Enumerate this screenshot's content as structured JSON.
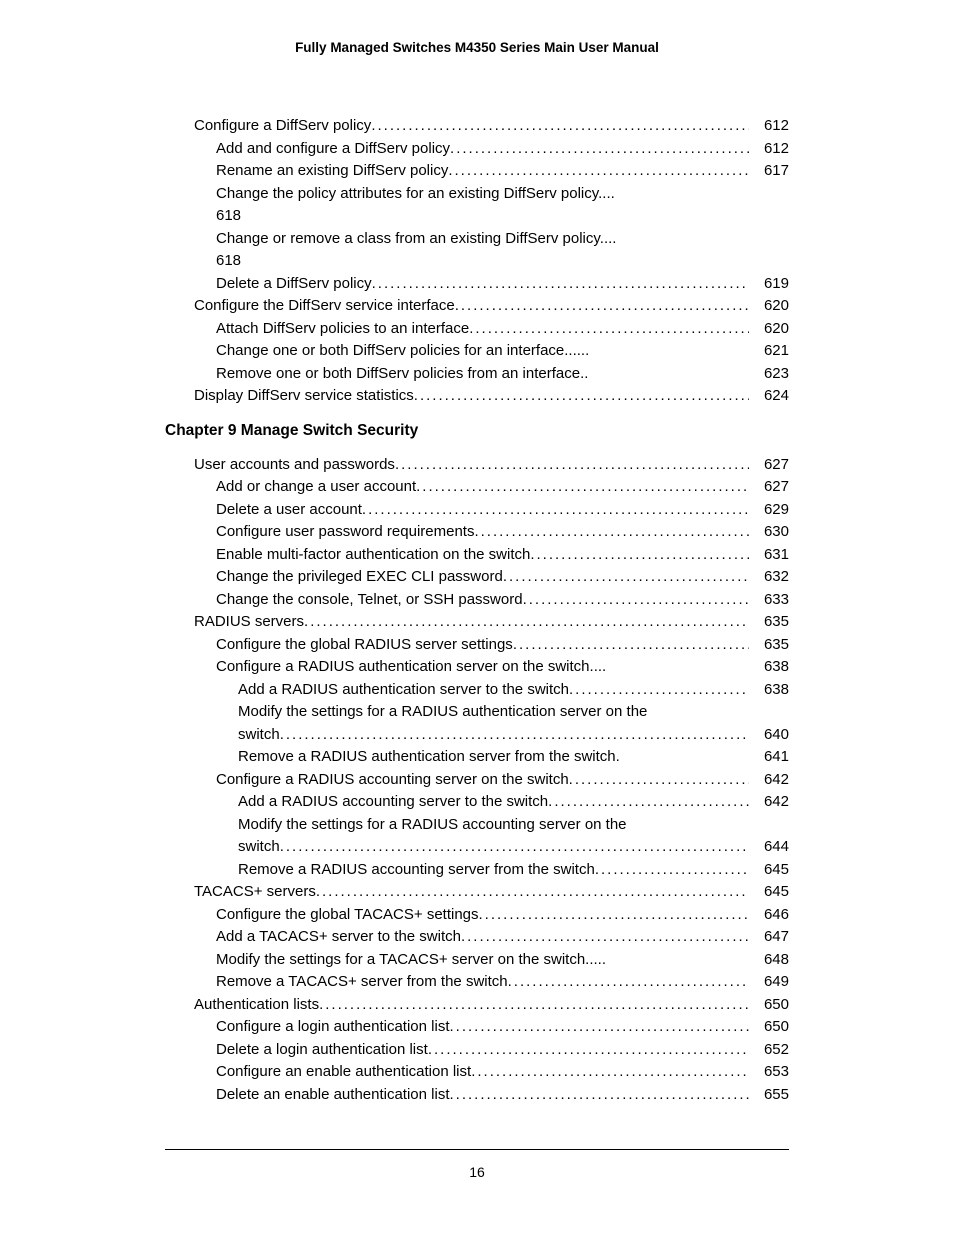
{
  "header": "Fully Managed Switches M4350 Series Main User Manual",
  "chapterHeading": "Chapter 9 Manage Switch Security",
  "footerPage": "16",
  "section1": [
    {
      "level": 0,
      "text": "Configure a DiffServ policy",
      "page": "612"
    },
    {
      "level": 1,
      "text": "Add and configure a DiffServ policy",
      "page": "612"
    },
    {
      "level": 1,
      "text": "Rename an existing DiffServ policy",
      "page": "617"
    },
    {
      "level": 1,
      "text": "Change the policy attributes for an existing DiffServ policy",
      "dots": "....",
      "wrap": "618"
    },
    {
      "level": 1,
      "text": "Change or remove a class from an existing DiffServ policy",
      "dots": "....",
      "wrap": "618"
    },
    {
      "level": 1,
      "text": "Delete a DiffServ policy",
      "page": "619"
    },
    {
      "level": 0,
      "text": "Configure the DiffServ service interface",
      "page": "620"
    },
    {
      "level": 1,
      "text": "Attach DiffServ policies to an interface",
      "page": "620"
    },
    {
      "level": 1,
      "text": "Change one or both DiffServ policies for an interface",
      "dots": "......",
      "page": "621"
    },
    {
      "level": 1,
      "text": "Remove one or both DiffServ policies from an interface",
      "dots": "..",
      "page": "623"
    },
    {
      "level": 0,
      "text": "Display DiffServ service statistics",
      "page": "624"
    }
  ],
  "section2": [
    {
      "level": 0,
      "text": "User accounts and passwords",
      "page": "627"
    },
    {
      "level": 1,
      "text": "Add or change a user account",
      "page": "627"
    },
    {
      "level": 1,
      "text": "Delete a user account",
      "page": "629"
    },
    {
      "level": 1,
      "text": "Configure user password requirements",
      "page": "630"
    },
    {
      "level": 1,
      "text": "Enable multi-factor authentication on the switch",
      "page": "631"
    },
    {
      "level": 1,
      "text": "Change the privileged EXEC CLI password",
      "page": "632"
    },
    {
      "level": 1,
      "text": "Change the console, Telnet, or SSH password",
      "page": "633"
    },
    {
      "level": 0,
      "text": "RADIUS servers",
      "page": "635"
    },
    {
      "level": 1,
      "text": "Configure the global RADIUS server settings",
      "page": "635"
    },
    {
      "level": 1,
      "text": "Configure a RADIUS authentication server on the switch",
      "dots": "....",
      "page": "638"
    },
    {
      "level": 2,
      "text": "Add a RADIUS authentication server to the switch",
      "page": "638"
    },
    {
      "level": 2,
      "text": "Modify the settings for a RADIUS authentication server on the",
      "wrapline": true
    },
    {
      "level": 2,
      "text": "switch",
      "page": "640"
    },
    {
      "level": 2,
      "text": "Remove a RADIUS authentication server from the switch",
      "dots": ".",
      "page": "641"
    },
    {
      "level": 1,
      "text": "Configure a RADIUS accounting server on the switch",
      "page": "642"
    },
    {
      "level": 2,
      "text": "Add a RADIUS accounting server to the switch",
      "page": "642"
    },
    {
      "level": 2,
      "text": "Modify the settings for a RADIUS accounting server on the",
      "wrapline": true
    },
    {
      "level": 2,
      "text": "switch",
      "page": "644"
    },
    {
      "level": 2,
      "text": "Remove a RADIUS accounting server from the switch",
      "page": "645"
    },
    {
      "level": 0,
      "text": "TACACS+ servers",
      "page": "645"
    },
    {
      "level": 1,
      "text": "Configure the global TACACS+ settings",
      "page": "646"
    },
    {
      "level": 1,
      "text": "Add a TACACS+ server to the switch",
      "page": "647"
    },
    {
      "level": 1,
      "text": "Modify the settings for a TACACS+ server on the switch",
      "dots": ".....",
      "page": "648"
    },
    {
      "level": 1,
      "text": "Remove a TACACS+ server from the switch",
      "page": "649"
    },
    {
      "level": 0,
      "text": "Authentication lists",
      "page": "650"
    },
    {
      "level": 1,
      "text": "Configure a login authentication list",
      "page": "650"
    },
    {
      "level": 1,
      "text": "Delete a login authentication list",
      "page": "652"
    },
    {
      "level": 1,
      "text": "Configure an enable authentication list",
      "page": "653"
    },
    {
      "level": 1,
      "text": "Delete an enable authentication list",
      "page": "655"
    }
  ]
}
